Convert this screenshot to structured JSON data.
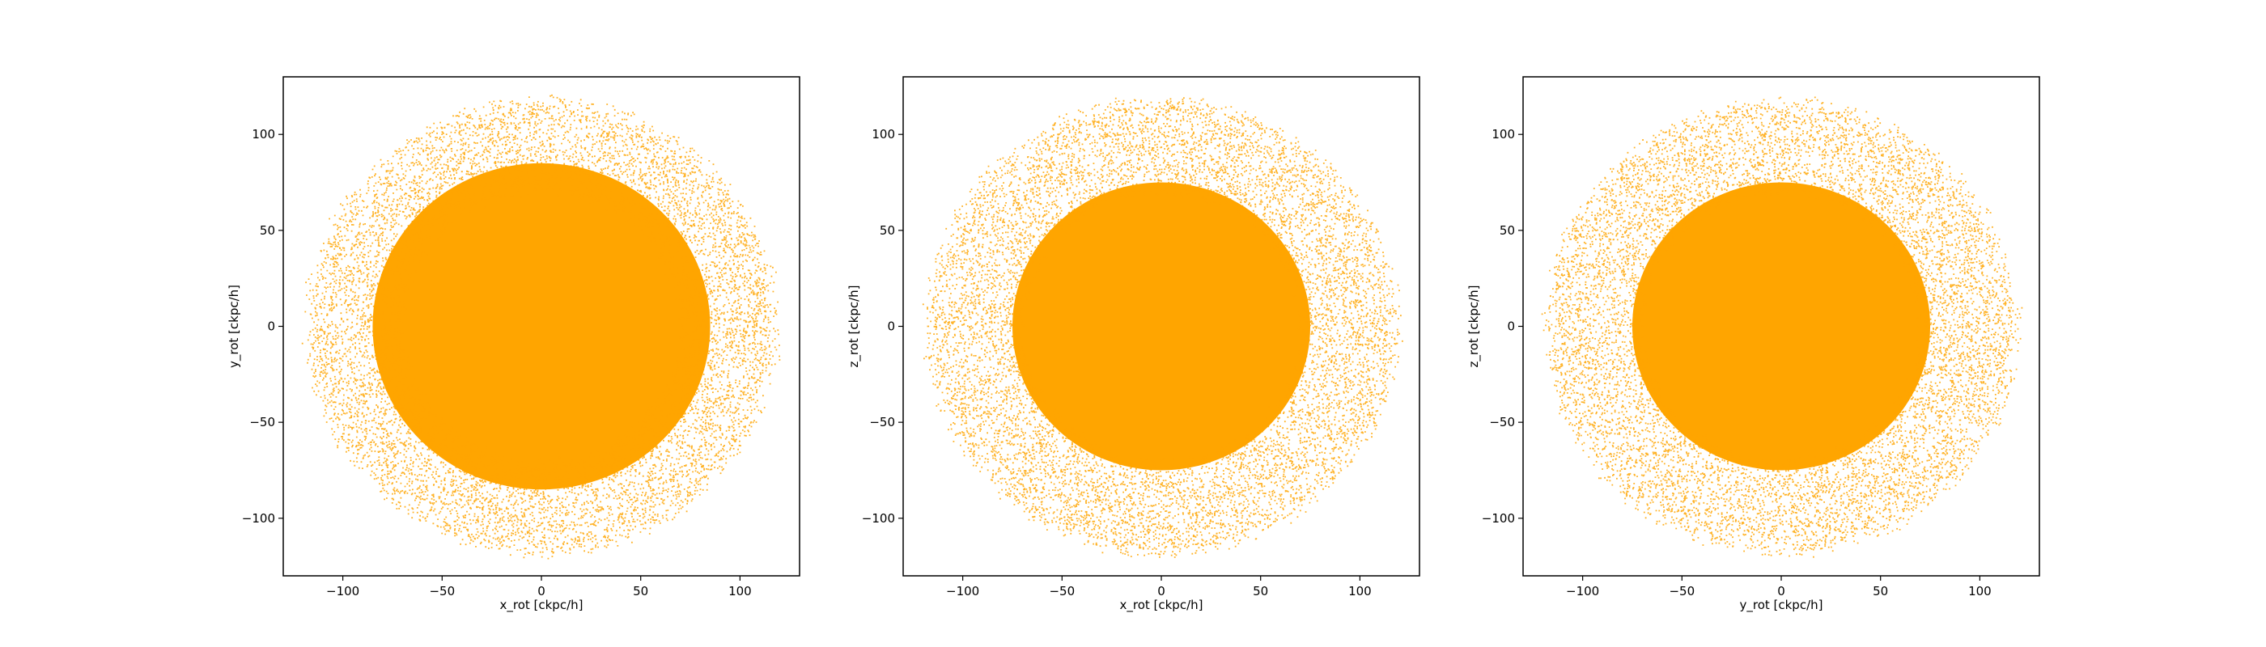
{
  "chart_data": [
    {
      "type": "scatter",
      "xlabel": "x_rot [ckpc/h]",
      "ylabel": "y_rot [ckpc/h]",
      "xlim": [
        -130,
        130
      ],
      "ylim": [
        -130,
        130
      ],
      "xticks": [
        -100,
        -50,
        0,
        50,
        100
      ],
      "yticks": [
        -100,
        -50,
        0,
        50,
        100
      ],
      "grid": false,
      "color": "#ffa500",
      "distribution": {
        "shape": "disc",
        "center": [
          0,
          0
        ],
        "radius": 118,
        "tilt_deg": 45,
        "dense_core_radius": 85
      }
    },
    {
      "type": "scatter",
      "xlabel": "x_rot [ckpc/h]",
      "ylabel": "z_rot [ckpc/h]",
      "xlim": [
        -130,
        130
      ],
      "ylim": [
        -130,
        130
      ],
      "xticks": [
        -100,
        -50,
        0,
        50,
        100
      ],
      "yticks": [
        -100,
        -50,
        0,
        50,
        100
      ],
      "grid": false,
      "color": "#ffa500",
      "distribution": {
        "shape": "disc",
        "center": [
          0,
          0
        ],
        "radius": 118,
        "tilt_deg": 0,
        "dense_core_radius": 75
      }
    },
    {
      "type": "scatter",
      "xlabel": "y_rot [ckpc/h]",
      "ylabel": "z_rot [ckpc/h]",
      "xlim": [
        -130,
        130
      ],
      "ylim": [
        -130,
        130
      ],
      "xticks": [
        -100,
        -50,
        0,
        50,
        100
      ],
      "yticks": [
        -100,
        -50,
        0,
        50,
        100
      ],
      "grid": false,
      "color": "#ffa500",
      "distribution": {
        "shape": "disc",
        "center": [
          0,
          0
        ],
        "radius": 118,
        "tilt_deg": 0,
        "dense_core_radius": 75
      }
    }
  ]
}
